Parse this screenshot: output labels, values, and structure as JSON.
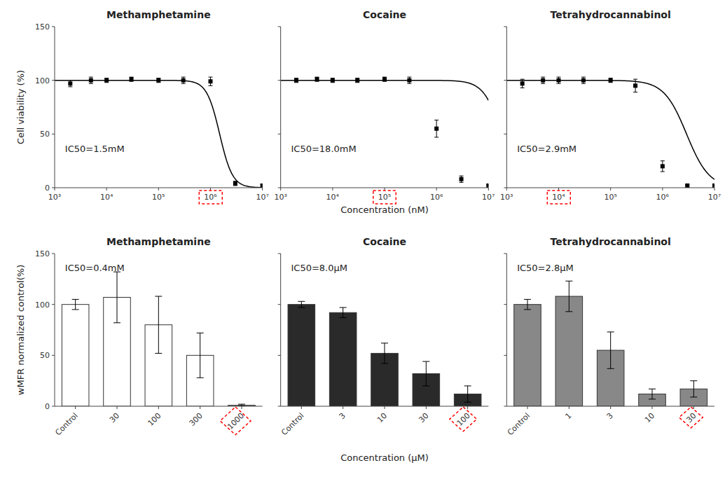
{
  "chart_data": [
    {
      "type": "scatter",
      "title": "Methamphetamine",
      "y_label": "Cell viability (%)",
      "log": "x",
      "x": [
        2000,
        5000,
        10000,
        30000,
        100000,
        300000,
        1000000,
        3000000,
        10000000
      ],
      "values": [
        97,
        100,
        100,
        101,
        100,
        100,
        99,
        4,
        2
      ],
      "errors": [
        3,
        3,
        2,
        2,
        2,
        3,
        4,
        2,
        1
      ],
      "curve": {
        "ic50": 1500000,
        "hill": 3.5,
        "top": 100,
        "bottom": 0
      },
      "color": "#000000",
      "annotation": "IC50=1.5mM",
      "highlight_x": 1000000,
      "xlim": [
        1000,
        10000000
      ],
      "xticks": [
        {
          "value": 1000,
          "label": "10³"
        },
        {
          "value": 10000,
          "label": "10⁴"
        },
        {
          "value": 100000,
          "label": "10⁵"
        },
        {
          "value": 1000000,
          "label": "10⁶"
        },
        {
          "value": 10000000,
          "label": "10⁷"
        }
      ],
      "ylim": [
        0,
        150
      ],
      "yticks": [
        0,
        50,
        100,
        150
      ]
    },
    {
      "type": "scatter",
      "title": "Cocaine",
      "x_label": "Concentration (nM)",
      "log": "x",
      "tick_labels": "x",
      "x": [
        2000,
        5000,
        10000,
        30000,
        100000,
        300000,
        1000000,
        3000000,
        10000000
      ],
      "values": [
        100,
        101,
        100,
        100,
        101,
        100,
        55,
        8,
        2
      ],
      "errors": [
        2,
        2,
        2,
        2,
        2,
        3,
        8,
        3,
        1
      ],
      "curve": {
        "ic50": 18000000,
        "hill": 2.5,
        "top": 100,
        "bottom": 0
      },
      "color": "#000000",
      "annotation": "IC50=18.0mM",
      "highlight_x": 100000,
      "xlim": [
        1000,
        10000000
      ],
      "xticks": [
        {
          "value": 1000,
          "label": "10³"
        },
        {
          "value": 10000,
          "label": "10⁴"
        },
        {
          "value": 100000,
          "label": "10⁵"
        },
        {
          "value": 1000000,
          "label": "10⁶"
        },
        {
          "value": 10000000,
          "label": "10⁷"
        }
      ],
      "ylim": [
        0,
        150
      ],
      "yticks": [
        0,
        50,
        100,
        150
      ]
    },
    {
      "type": "scatter",
      "title": "Tetrahydrocannabinol",
      "log": "x",
      "tick_labels": "x",
      "x": [
        2000,
        5000,
        10000,
        30000,
        100000,
        300000,
        1000000,
        3000000,
        10000000
      ],
      "values": [
        97,
        100,
        100,
        100,
        100,
        95,
        20,
        2,
        2
      ],
      "errors": [
        4,
        3,
        3,
        3,
        2,
        6,
        5,
        1,
        1
      ],
      "curve": {
        "ic50": 2900000,
        "hill": 2.0,
        "top": 100,
        "bottom": 0
      },
      "color": "#000000",
      "annotation": "IC50=2.9mM",
      "highlight_x": 10000,
      "xlim": [
        1000,
        10000000
      ],
      "xticks": [
        {
          "value": 1000,
          "label": "10³"
        },
        {
          "value": 10000,
          "label": "10⁴"
        },
        {
          "value": 100000,
          "label": "10⁵"
        },
        {
          "value": 1000000,
          "label": "10⁶"
        },
        {
          "value": 10000000,
          "label": "10⁷"
        }
      ],
      "ylim": [
        0,
        150
      ],
      "yticks": [
        0,
        50,
        100,
        150
      ]
    },
    {
      "type": "bar",
      "title": "Methamphetamine",
      "y_label": "wMFR normalized control(%)",
      "categories": [
        "Control",
        "30",
        "100",
        "300",
        "1000"
      ],
      "values": [
        100,
        107,
        80,
        50,
        1
      ],
      "errors": [
        5,
        25,
        28,
        22,
        1
      ],
      "color": "white",
      "annotation": "IC50=0.4mM",
      "highlight_category": "1000",
      "ylim": [
        0,
        150
      ],
      "yticks": [
        0,
        50,
        100,
        150
      ]
    },
    {
      "type": "bar",
      "title": "Cocaine",
      "x_label": "Concentration (μM)",
      "tick_labels": "x",
      "categories": [
        "Control",
        "3",
        "10",
        "30",
        "100"
      ],
      "values": [
        100,
        92,
        52,
        32,
        12
      ],
      "errors": [
        3,
        5,
        10,
        12,
        8
      ],
      "color": "#2a2a2a",
      "annotation": "IC50=8.0μM",
      "highlight_category": "100",
      "ylim": [
        0,
        150
      ],
      "yticks": [
        0,
        50,
        100,
        150
      ]
    },
    {
      "type": "bar",
      "title": "Tetrahydrocannabinol",
      "tick_labels": "x",
      "categories": [
        "Control",
        "1",
        "3",
        "10",
        "30"
      ],
      "values": [
        100,
        108,
        55,
        12,
        17
      ],
      "errors": [
        5,
        15,
        18,
        5,
        8
      ],
      "color": "#888888",
      "annotation": "IC50=2.8μM",
      "highlight_category": "30",
      "ylim": [
        0,
        150
      ],
      "yticks": [
        0,
        50,
        100,
        150
      ]
    }
  ]
}
